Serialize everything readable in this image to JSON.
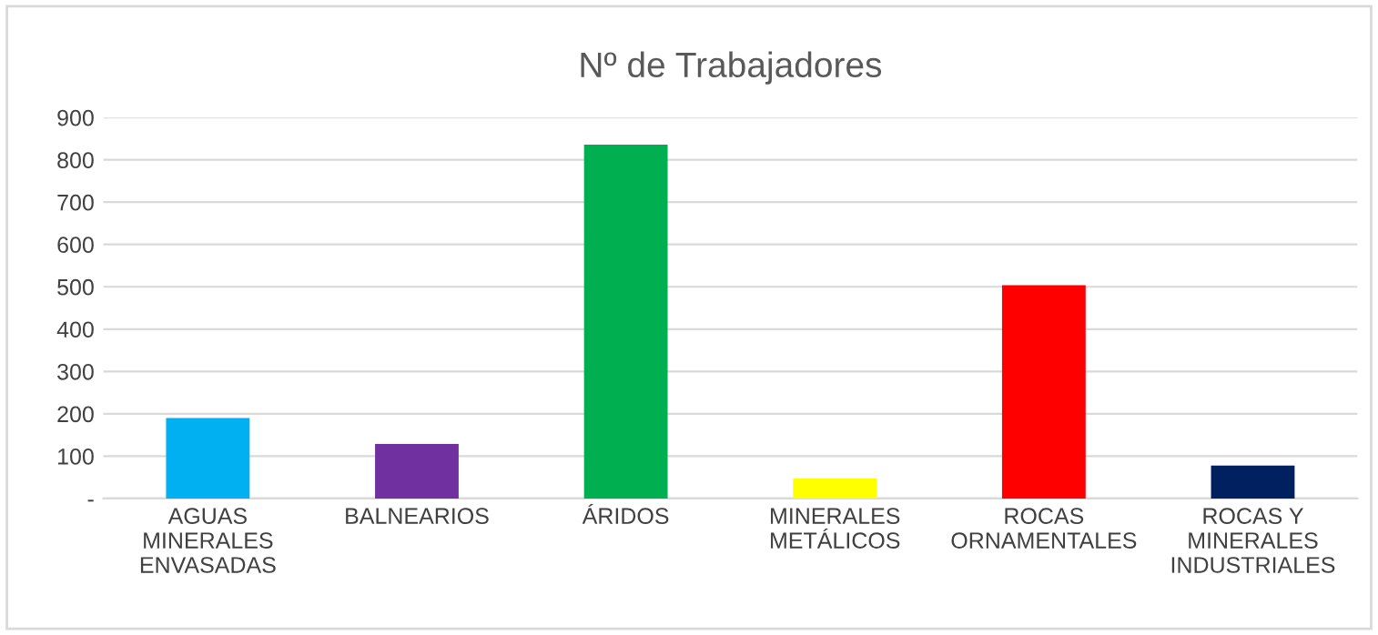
{
  "chart_data": {
    "type": "bar",
    "title": "Nº de Trabajadores",
    "categories": [
      "AGUAS\nMINERALES\nENVASADAS",
      "BALNEARIOS",
      "ÁRIDOS",
      "MINERALES\nMETÁLICOS",
      "ROCAS\nORNAMENTALES",
      "ROCAS Y\nMINERALES\nINDUSTRIALES"
    ],
    "values": [
      190,
      129,
      836,
      47,
      504,
      78
    ],
    "colors": [
      "#00b0f0",
      "#7030a0",
      "#00b050",
      "#ffff00",
      "#ff0000",
      "#002060"
    ],
    "ylim": [
      0,
      900
    ],
    "yticks": [
      {
        "value": 0,
        "label": "-"
      },
      100,
      200,
      300,
      400,
      500,
      600,
      700,
      800,
      900
    ],
    "grid": "y",
    "legend": false
  }
}
